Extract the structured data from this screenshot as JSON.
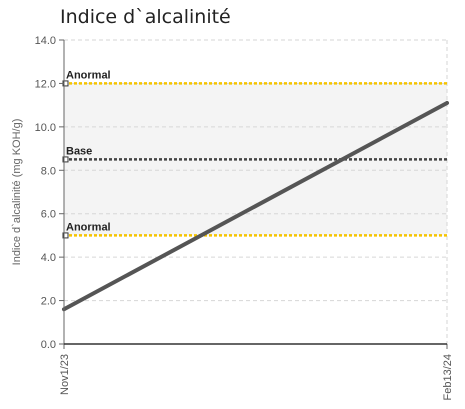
{
  "chart_data": {
    "type": "line",
    "title": "Indice d`alcalinité",
    "xlabel": "",
    "ylabel": "Indice d`alcalinité (mg KOH/g)",
    "ylim": [
      0,
      14
    ],
    "yticks": [
      "0.0",
      "2.0",
      "4.0",
      "6.0",
      "8.0",
      "10.0",
      "12.0",
      "14.0"
    ],
    "xlim": [
      "2023-11-01",
      "2024-02-13"
    ],
    "xticks": [
      "Nov1/23",
      "Feb13/24"
    ],
    "grid": true,
    "band": {
      "from": 5.0,
      "to": 12.0
    },
    "series": [
      {
        "x": [
          "2023-11-01",
          "2024-02-13"
        ],
        "y": [
          1.6,
          11.1
        ],
        "color": "#555555"
      }
    ],
    "reference_lines": [
      {
        "label": "Anormal",
        "value": 12.0,
        "color": "#f5c400"
      },
      {
        "label": "Base",
        "value": 8.5,
        "color": "#444444"
      },
      {
        "label": "Anormal",
        "value": 5.0,
        "color": "#f5c400"
      }
    ]
  }
}
